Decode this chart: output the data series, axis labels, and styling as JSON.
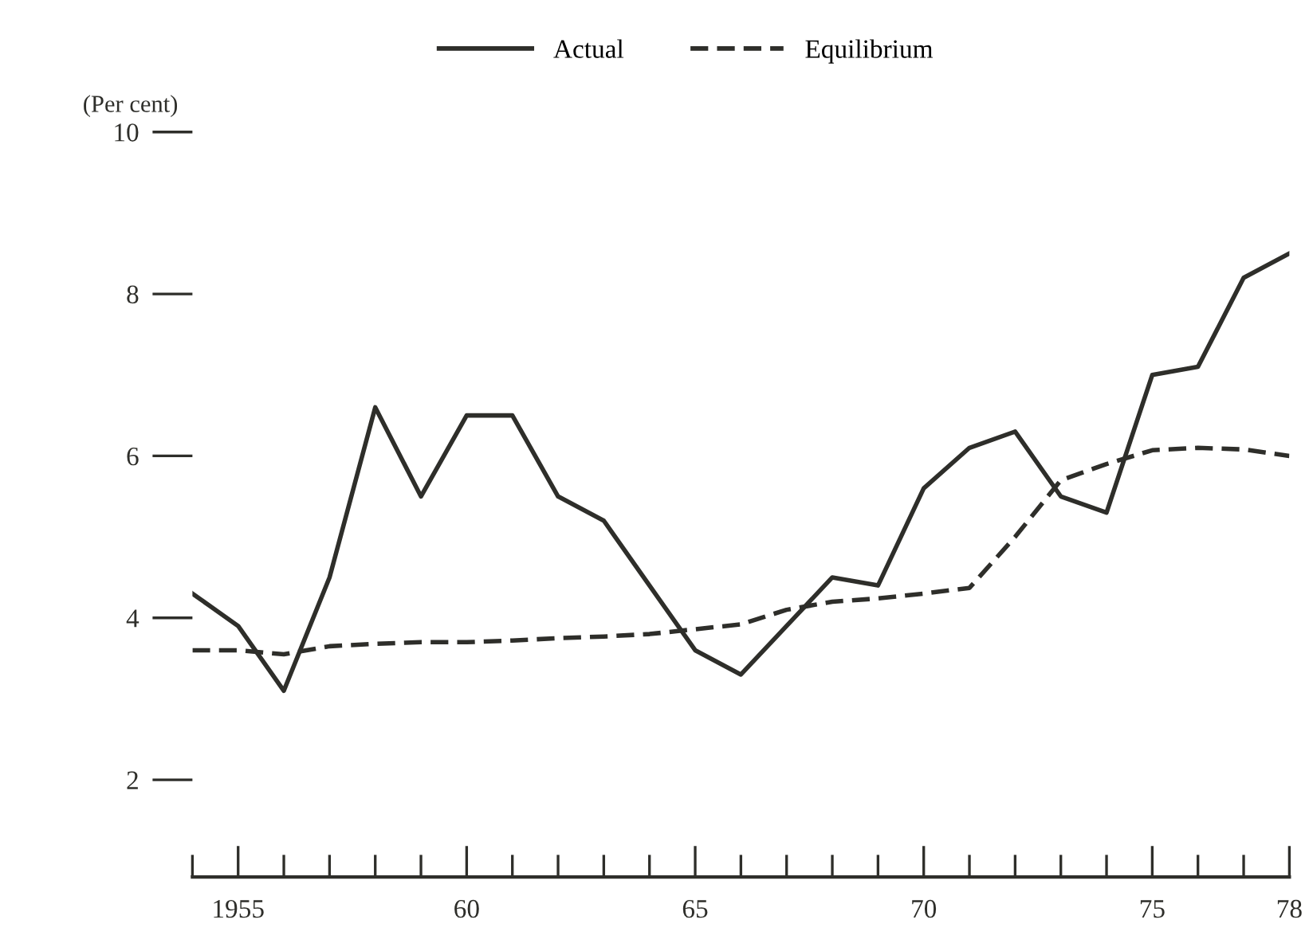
{
  "chart_data": {
    "type": "line",
    "ylabel": "(Per cent)",
    "x": [
      1954,
      1955,
      1956,
      1957,
      1958,
      1959,
      1960,
      1961,
      1962,
      1963,
      1964,
      1965,
      1966,
      1967,
      1968,
      1969,
      1970,
      1971,
      1972,
      1973,
      1974,
      1975,
      1976,
      1977,
      1978
    ],
    "series": [
      {
        "name": "Actual",
        "color": "#2e2e2a",
        "line_style": "solid",
        "values": [
          4.3,
          3.9,
          3.1,
          4.5,
          6.6,
          5.5,
          6.5,
          6.5,
          5.5,
          5.2,
          4.4,
          3.6,
          3.3,
          3.9,
          4.5,
          4.4,
          5.6,
          6.1,
          6.3,
          5.5,
          5.3,
          7.0,
          7.1,
          8.2,
          8.5
        ]
      },
      {
        "name": "Equilibrium",
        "color": "#2e2e2a",
        "line_style": "dashed",
        "values": [
          3.6,
          3.6,
          3.55,
          3.65,
          3.68,
          3.7,
          3.7,
          3.72,
          3.75,
          3.77,
          3.8,
          3.86,
          3.92,
          4.1,
          4.2,
          4.24,
          4.3,
          4.37,
          5.0,
          5.7,
          5.9,
          6.07,
          6.1,
          6.08,
          6.0
        ]
      }
    ],
    "xlim": [
      1954,
      1978
    ],
    "xticks": [
      {
        "value": 1954,
        "label": null
      },
      {
        "value": 1955,
        "label": "1955"
      },
      {
        "value": 1956,
        "label": null
      },
      {
        "value": 1957,
        "label": null
      },
      {
        "value": 1958,
        "label": null
      },
      {
        "value": 1959,
        "label": null
      },
      {
        "value": 1960,
        "label": "60"
      },
      {
        "value": 1961,
        "label": null
      },
      {
        "value": 1962,
        "label": null
      },
      {
        "value": 1963,
        "label": null
      },
      {
        "value": 1964,
        "label": null
      },
      {
        "value": 1965,
        "label": "65"
      },
      {
        "value": 1966,
        "label": null
      },
      {
        "value": 1967,
        "label": null
      },
      {
        "value": 1968,
        "label": null
      },
      {
        "value": 1969,
        "label": null
      },
      {
        "value": 1970,
        "label": "70"
      },
      {
        "value": 1971,
        "label": null
      },
      {
        "value": 1972,
        "label": null
      },
      {
        "value": 1973,
        "label": null
      },
      {
        "value": 1974,
        "label": null
      },
      {
        "value": 1975,
        "label": "75"
      },
      {
        "value": 1976,
        "label": null
      },
      {
        "value": 1977,
        "label": null
      },
      {
        "value": 1978,
        "label": "78"
      }
    ],
    "ylim": [
      0.8,
      10
    ],
    "yticks": [
      2,
      4,
      6,
      8,
      10
    ],
    "grid": false,
    "legend": "top",
    "marker": "none"
  }
}
